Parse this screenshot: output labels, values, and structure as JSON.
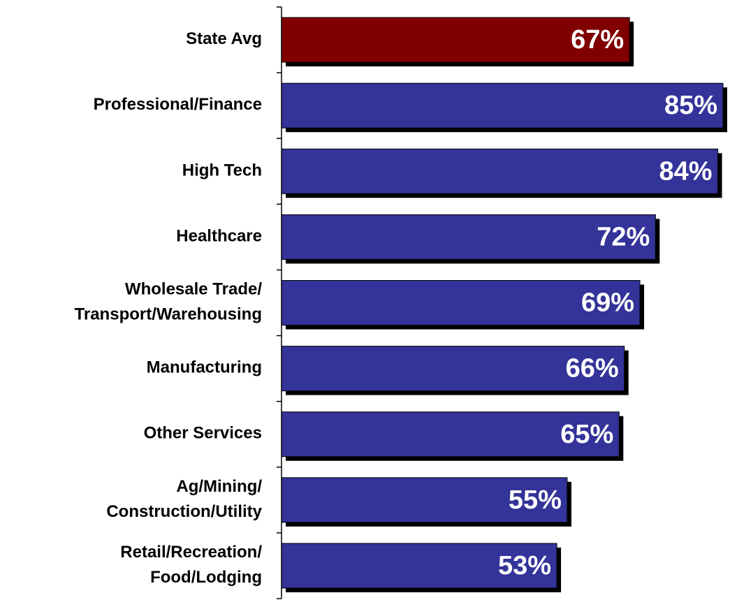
{
  "chart_data": {
    "type": "barh",
    "categories": [
      "State Avg",
      "Professional/Finance",
      "High Tech",
      "Healthcare",
      "Wholesale Trade/\nTransport/Warehousing",
      "Manufacturing",
      "Other Services",
      "Ag/Mining/\nConstruction/Utility",
      "Retail/Recreation/\nFood/Lodging"
    ],
    "values": [
      67,
      85,
      84,
      72,
      69,
      66,
      65,
      55,
      53
    ],
    "value_labels": [
      "67%",
      "85%",
      "84%",
      "72%",
      "69%",
      "66%",
      "65%",
      "55%",
      "53%"
    ],
    "colors": [
      "#800000",
      "#333399",
      "#333399",
      "#333399",
      "#333399",
      "#333399",
      "#333399",
      "#333399",
      "#333399"
    ],
    "xlim": [
      0,
      85
    ]
  }
}
